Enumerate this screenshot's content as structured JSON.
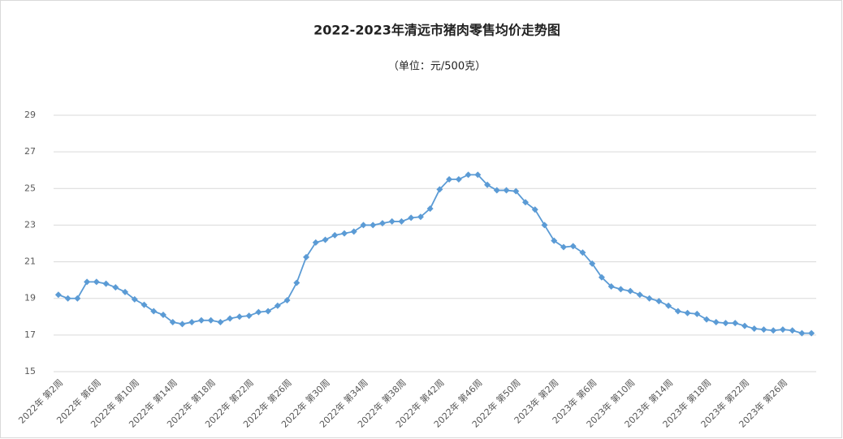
{
  "chart_data": {
    "type": "line",
    "title": "2022-2023年清远市猪肉零售均价走势图",
    "subtitle": "（单位：元/500克）",
    "categories": [
      "2022年 第2周",
      null,
      null,
      null,
      "2022年 第6周",
      null,
      null,
      null,
      "2022年 第10周",
      null,
      null,
      null,
      "2022年 第14周",
      null,
      null,
      null,
      "2022年 第18周",
      null,
      null,
      null,
      "2022年 第22周",
      null,
      null,
      null,
      "2022年 第26周",
      null,
      null,
      null,
      "2022年 第30周",
      null,
      null,
      null,
      "2022年 第34周",
      null,
      null,
      null,
      "2022年 第38周",
      null,
      null,
      null,
      "2022年 第42周",
      null,
      null,
      null,
      "2022年 第46周",
      null,
      null,
      null,
      "2022年 第50周",
      null,
      null,
      null,
      "2023年 第2周",
      null,
      null,
      null,
      "2023年 第6周",
      null,
      null,
      null,
      "2023年 第10周",
      null,
      null,
      null,
      "2023年 第14周",
      null,
      null,
      null,
      "2023年 第18周",
      null,
      null,
      null,
      "2023年 第22周",
      null,
      null,
      null,
      "2023年 第26周",
      null,
      null,
      null
    ],
    "series": [
      {
        "color": "#5b9bd5",
        "values": [
          19.2,
          19.0,
          19.0,
          19.9,
          19.9,
          19.8,
          19.6,
          19.35,
          18.95,
          18.65,
          18.3,
          18.1,
          17.7,
          17.6,
          17.7,
          17.8,
          17.8,
          17.7,
          17.9,
          18.0,
          18.05,
          18.25,
          18.3,
          18.6,
          18.9,
          19.85,
          21.25,
          22.05,
          22.2,
          22.45,
          22.55,
          22.65,
          23.0,
          23.0,
          23.1,
          23.2,
          23.2,
          23.4,
          23.45,
          23.9,
          24.95,
          25.5,
          25.5,
          25.75,
          25.75,
          25.2,
          24.9,
          24.9,
          24.85,
          24.25,
          23.85,
          23.0,
          22.15,
          21.8,
          21.85,
          21.5,
          20.9,
          20.15,
          19.65,
          19.5,
          19.4,
          19.2,
          19.0,
          18.85,
          18.6,
          18.3,
          18.2,
          18.15,
          17.85,
          17.7,
          17.65,
          17.65,
          17.5,
          17.35,
          17.3,
          17.25,
          17.3,
          17.25,
          17.1,
          17.1
        ]
      }
    ],
    "ylim": [
      15,
      29
    ],
    "yticks": [
      15,
      17,
      19,
      21,
      23,
      25,
      27,
      29
    ],
    "grid": true
  }
}
